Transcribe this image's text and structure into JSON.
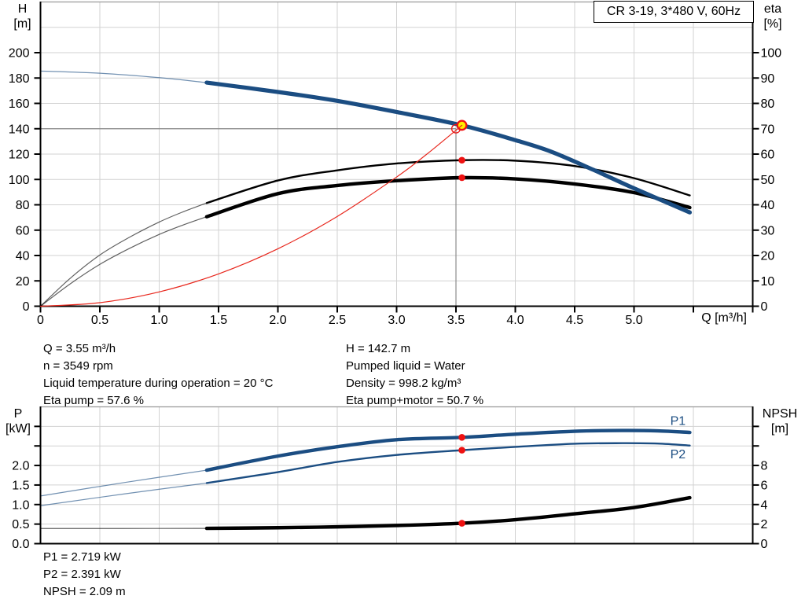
{
  "title_box": {
    "label": "CR 3-19, 3*480 V, 60Hz"
  },
  "info_block": {
    "left": [
      "Q = 3.55 m³/h",
      "n = 3549 rpm",
      "Liquid temperature during operation = 20 °C",
      "Eta pump = 57.6 %"
    ],
    "right": [
      "H = 142.7 m",
      "Pumped liquid = Water",
      "Density = 998.2 kg/m³",
      "Eta pump+motor = 50.7 %"
    ]
  },
  "result_block": [
    "P1 = 2.719 kW",
    "P2 = 2.391 kW",
    "NPSH = 2.09 m"
  ],
  "colors": {
    "blue": "#1b4d82",
    "black": "#000000",
    "red": "#e8281e",
    "marker_red": "#ee1111",
    "duty_yellow": "#ffee00",
    "grid": "#d2d2d2",
    "crosshair": "#878787",
    "frame_top": "#999999",
    "axis": "#000000",
    "text": "#000000"
  },
  "chart_data": [
    {
      "type": "line",
      "id": "performance-chart",
      "title": "CR 3-19, 3*480 V, 60Hz",
      "x": {
        "title": "Q [m³/h]",
        "min": 0,
        "max": 6,
        "tick_values": [
          0,
          0.5,
          1,
          1.5,
          2,
          2.5,
          3,
          3.5,
          4,
          4.5,
          5,
          5.5,
          6
        ],
        "tick_labels": [
          "0",
          "0.5",
          "1.0",
          "1.5",
          "2.0",
          "2.5",
          "3.0",
          "3.5",
          "4.0",
          "4.5",
          "5.0"
        ],
        "grid_values": [
          0.5,
          1,
          1.5,
          2,
          2.5,
          3,
          3.5,
          4,
          4.5,
          5,
          5.5
        ]
      },
      "y_left": {
        "name": "H",
        "unit": "[m]",
        "min": 0,
        "max": 240,
        "tick_values": [
          0,
          20,
          40,
          60,
          80,
          100,
          120,
          140,
          160,
          180,
          200
        ],
        "tick_labels": [
          "0",
          "20",
          "40",
          "60",
          "80",
          "100",
          "120",
          "140",
          "160",
          "180",
          "200"
        ],
        "grid_values": [
          20,
          40,
          60,
          80,
          100,
          120,
          140,
          160,
          180,
          200,
          220
        ]
      },
      "y_right": {
        "name": "eta",
        "unit": "[%]",
        "min": 0,
        "max": 120,
        "tick_values": [
          0,
          10,
          20,
          30,
          40,
          50,
          60,
          70,
          80,
          90,
          100
        ],
        "tick_labels": [
          "0",
          "10",
          "20",
          "30",
          "40",
          "50",
          "60",
          "70",
          "80",
          "90",
          "100"
        ],
        "grid_values": []
      },
      "series": [
        {
          "name": "eta-pump-curve",
          "axis": "right",
          "color_key": "black",
          "parts": [
            {
              "weight": "hairline",
              "muted": true,
              "points": [
                [
                  0,
                  0
                ],
                [
                  0.25,
                  11
                ],
                [
                  0.5,
                  20.2
                ],
                [
                  0.75,
                  27.2
                ],
                [
                  1,
                  33.2
                ],
                [
                  1.2,
                  37.2
                ],
                [
                  1.4,
                  40.7
                ]
              ]
            },
            {
              "weight": "medium",
              "points": [
                [
                  1.4,
                  40.7
                ],
                [
                  2,
                  49.6
                ],
                [
                  2.5,
                  53.6
                ],
                [
                  3,
                  56.3
                ],
                [
                  3.55,
                  57.6
                ],
                [
                  4,
                  57.4
                ],
                [
                  4.5,
                  55.3
                ],
                [
                  5,
                  50.5
                ],
                [
                  5.47,
                  43.7
                ]
              ]
            }
          ]
        },
        {
          "name": "eta-pump-motor-curve",
          "axis": "right",
          "color_key": "black",
          "parts": [
            {
              "weight": "hairline",
              "muted": true,
              "points": [
                [
                  0,
                  0
                ],
                [
                  0.25,
                  8.8
                ],
                [
                  0.5,
                  16.5
                ],
                [
                  0.75,
                  22.8
                ],
                [
                  1,
                  28.3
                ],
                [
                  1.2,
                  32
                ],
                [
                  1.4,
                  35.3
                ]
              ]
            },
            {
              "weight": "bold",
              "points": [
                [
                  1.4,
                  35.3
                ],
                [
                  2,
                  44.4
                ],
                [
                  2.5,
                  47.6
                ],
                [
                  3,
                  49.5
                ],
                [
                  3.55,
                  50.7
                ],
                [
                  4,
                  50.2
                ],
                [
                  4.5,
                  48.2
                ],
                [
                  5,
                  44.8
                ],
                [
                  5.47,
                  38.9
                ]
              ]
            }
          ]
        },
        {
          "name": "head-curve",
          "axis": "left",
          "color_key": "blue",
          "parts": [
            {
              "weight": "hairline",
              "muted": true,
              "points": [
                [
                  0,
                  185.5
                ],
                [
                  0.5,
                  183.8
                ],
                [
                  1,
                  180.3
                ],
                [
                  1.4,
                  176.4
                ]
              ]
            },
            {
              "weight": "heavy",
              "points": [
                [
                  1.4,
                  176.4
                ],
                [
                  2,
                  169
                ],
                [
                  2.5,
                  162
                ],
                [
                  3,
                  153.2
                ],
                [
                  3.55,
                  142.7
                ],
                [
                  4,
                  131
                ],
                [
                  4.3,
                  122
                ],
                [
                  4.66,
                  107.5
                ],
                [
                  5,
                  93
                ],
                [
                  5.47,
                  74
                ]
              ]
            }
          ]
        },
        {
          "name": "system-curve",
          "axis": "left",
          "color_key": "red",
          "draw_over_markers": true,
          "parts": [
            {
              "weight": "hairline",
              "points": [
                [
                  0,
                  0
                ],
                [
                  0.5,
                  2.8
                ],
                [
                  1,
                  11.3
                ],
                [
                  1.5,
                  25.5
                ],
                [
                  2,
                  45.3
                ],
                [
                  2.5,
                  70.8
                ],
                [
                  3,
                  101.9
                ],
                [
                  3.25,
                  119.6
                ],
                [
                  3.5,
                  138.8
                ],
                [
                  3.55,
                  142.7
                ]
              ]
            }
          ]
        }
      ],
      "crosshair": {
        "q": 3.5,
        "v": 140,
        "axis": "left"
      },
      "markers": [
        {
          "kind": "open-circle",
          "axis": "left",
          "q": 3.5,
          "v": 140,
          "label": "requested-duty-point"
        },
        {
          "kind": "duty",
          "axis": "left",
          "q": 3.55,
          "v": 142.7,
          "label": "actual-duty-point"
        },
        {
          "kind": "dot",
          "axis": "right",
          "q": 3.55,
          "v": 57.6,
          "label": "eta-pump-at-duty"
        },
        {
          "kind": "dot",
          "axis": "right",
          "q": 3.55,
          "v": 50.7,
          "label": "eta-pump-motor-at-duty"
        }
      ],
      "series_labels": []
    },
    {
      "type": "line",
      "id": "power-npsh-chart",
      "title": "",
      "x": {
        "title": "",
        "min": 0,
        "max": 6,
        "tick_values": [],
        "tick_labels": [],
        "grid_values": [
          0.5,
          1,
          1.5,
          2,
          2.5,
          3,
          3.5,
          4,
          4.5,
          5,
          5.5
        ]
      },
      "y_left": {
        "name": "P",
        "unit": "[kW]",
        "min": 0,
        "max": 3.5,
        "tick_values": [
          0,
          0.5,
          1,
          1.5,
          2,
          2.5,
          3
        ],
        "tick_labels": [
          "0.0",
          "0.5",
          "1.0",
          "1.5",
          "2.0"
        ],
        "grid_values": [
          0.5,
          1,
          1.5,
          2,
          2.5,
          3
        ]
      },
      "y_right": {
        "name": "NPSH",
        "unit": "[m]",
        "min": 0,
        "max": 14,
        "tick_values": [
          0,
          2,
          4,
          6,
          8,
          10,
          12
        ],
        "tick_labels": [
          "0",
          "2",
          "4",
          "6",
          "8"
        ],
        "grid_values": []
      },
      "series": [
        {
          "name": "p1-curve",
          "axis": "left",
          "color_key": "blue",
          "parts": [
            {
              "weight": "hairline",
              "muted": true,
              "points": [
                [
                  0,
                  1.22
                ],
                [
                  0.7,
                  1.56
                ],
                [
                  1.4,
                  1.88
                ]
              ]
            },
            {
              "weight": "bold",
              "points": [
                [
                  1.4,
                  1.88
                ],
                [
                  2,
                  2.24
                ],
                [
                  2.5,
                  2.48
                ],
                [
                  3,
                  2.66
                ],
                [
                  3.55,
                  2.719
                ],
                [
                  4,
                  2.8
                ],
                [
                  4.5,
                  2.875
                ],
                [
                  4.9,
                  2.895
                ],
                [
                  5.2,
                  2.885
                ],
                [
                  5.47,
                  2.845
                ]
              ]
            }
          ]
        },
        {
          "name": "p2-curve",
          "axis": "left",
          "color_key": "blue",
          "parts": [
            {
              "weight": "hairline",
              "muted": true,
              "points": [
                [
                  0,
                  0.97
                ],
                [
                  0.7,
                  1.27
                ],
                [
                  1.4,
                  1.55
                ]
              ]
            },
            {
              "weight": "medium",
              "points": [
                [
                  1.4,
                  1.55
                ],
                [
                  2,
                  1.83
                ],
                [
                  2.5,
                  2.09
                ],
                [
                  3,
                  2.27
                ],
                [
                  3.55,
                  2.391
                ],
                [
                  4,
                  2.475
                ],
                [
                  4.5,
                  2.555
                ],
                [
                  4.9,
                  2.57
                ],
                [
                  5.2,
                  2.56
                ],
                [
                  5.47,
                  2.51
                ]
              ]
            }
          ]
        },
        {
          "name": "npsh-curve",
          "axis": "right",
          "color_key": "black",
          "parts": [
            {
              "weight": "hairline",
              "muted": true,
              "points": [
                [
                  0,
                  1.55
                ],
                [
                  0.7,
                  1.55
                ],
                [
                  1.4,
                  1.56
                ]
              ]
            },
            {
              "weight": "bold",
              "points": [
                [
                  1.4,
                  1.56
                ],
                [
                  2,
                  1.63
                ],
                [
                  2.5,
                  1.72
                ],
                [
                  3,
                  1.86
                ],
                [
                  3.55,
                  2.09
                ],
                [
                  4,
                  2.45
                ],
                [
                  4.5,
                  3.05
                ],
                [
                  5,
                  3.7
                ],
                [
                  5.47,
                  4.7
                ]
              ]
            }
          ]
        }
      ],
      "crosshair": null,
      "markers": [
        {
          "kind": "dot",
          "axis": "left",
          "q": 3.55,
          "v": 2.719,
          "label": "p1-at-duty"
        },
        {
          "kind": "dot",
          "axis": "left",
          "q": 3.55,
          "v": 2.391,
          "label": "p2-at-duty"
        },
        {
          "kind": "dot",
          "axis": "right",
          "q": 3.55,
          "v": 2.09,
          "label": "npsh-at-duty"
        }
      ],
      "series_labels": [
        {
          "text": "P1",
          "q": 5.37,
          "v": 3.147
        },
        {
          "text": "P2",
          "q": 5.37,
          "v": 2.29
        }
      ]
    }
  ]
}
